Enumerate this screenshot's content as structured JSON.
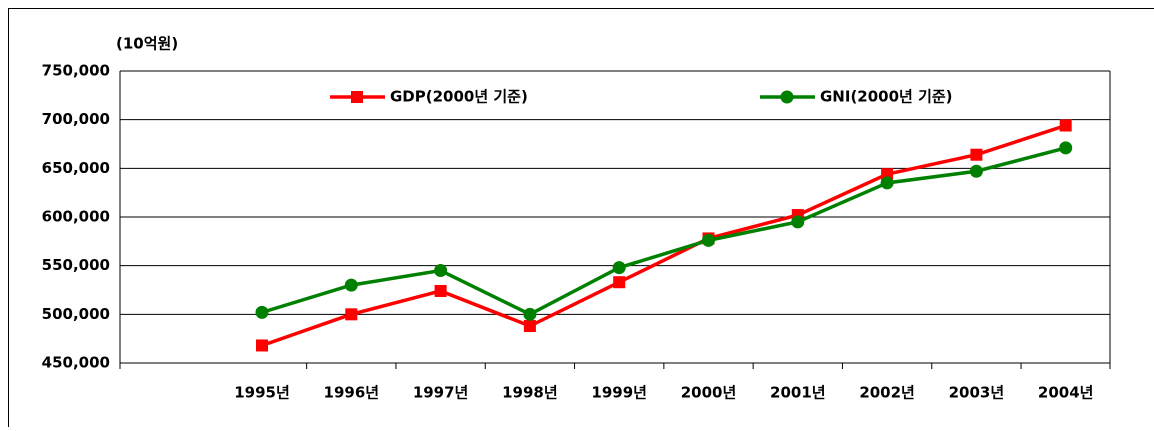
{
  "chart_data": {
    "type": "line",
    "y_unit_label": "(10억원)",
    "categories": [
      "1995년",
      "1996년",
      "1997년",
      "1998년",
      "1999년",
      "2000년",
      "2001년",
      "2002년",
      "2003년",
      "2004년"
    ],
    "series": [
      {
        "name": "GDP(2000년 기준)",
        "color": "#ff0000",
        "marker": "square",
        "values": [
          468000,
          500000,
          524000,
          488000,
          533000,
          578000,
          602000,
          644000,
          664000,
          694000
        ]
      },
      {
        "name": "GNI(2000년 기준)",
        "color": "#008000",
        "marker": "circle",
        "values": [
          502000,
          530000,
          545000,
          500000,
          548000,
          576000,
          595000,
          635000,
          647000,
          671000
        ]
      }
    ],
    "ylim": [
      450000,
      750000
    ],
    "yticks": [
      {
        "value": 450000,
        "label": "450,000"
      },
      {
        "value": 500000,
        "label": "500,000"
      },
      {
        "value": 550000,
        "label": "550,000"
      },
      {
        "value": 600000,
        "label": "600,000"
      },
      {
        "value": 650000,
        "label": "650,000"
      },
      {
        "value": 700000,
        "label": "700,000"
      },
      {
        "value": 750000,
        "label": "750,000"
      }
    ],
    "grid": true,
    "legend": "top"
  }
}
